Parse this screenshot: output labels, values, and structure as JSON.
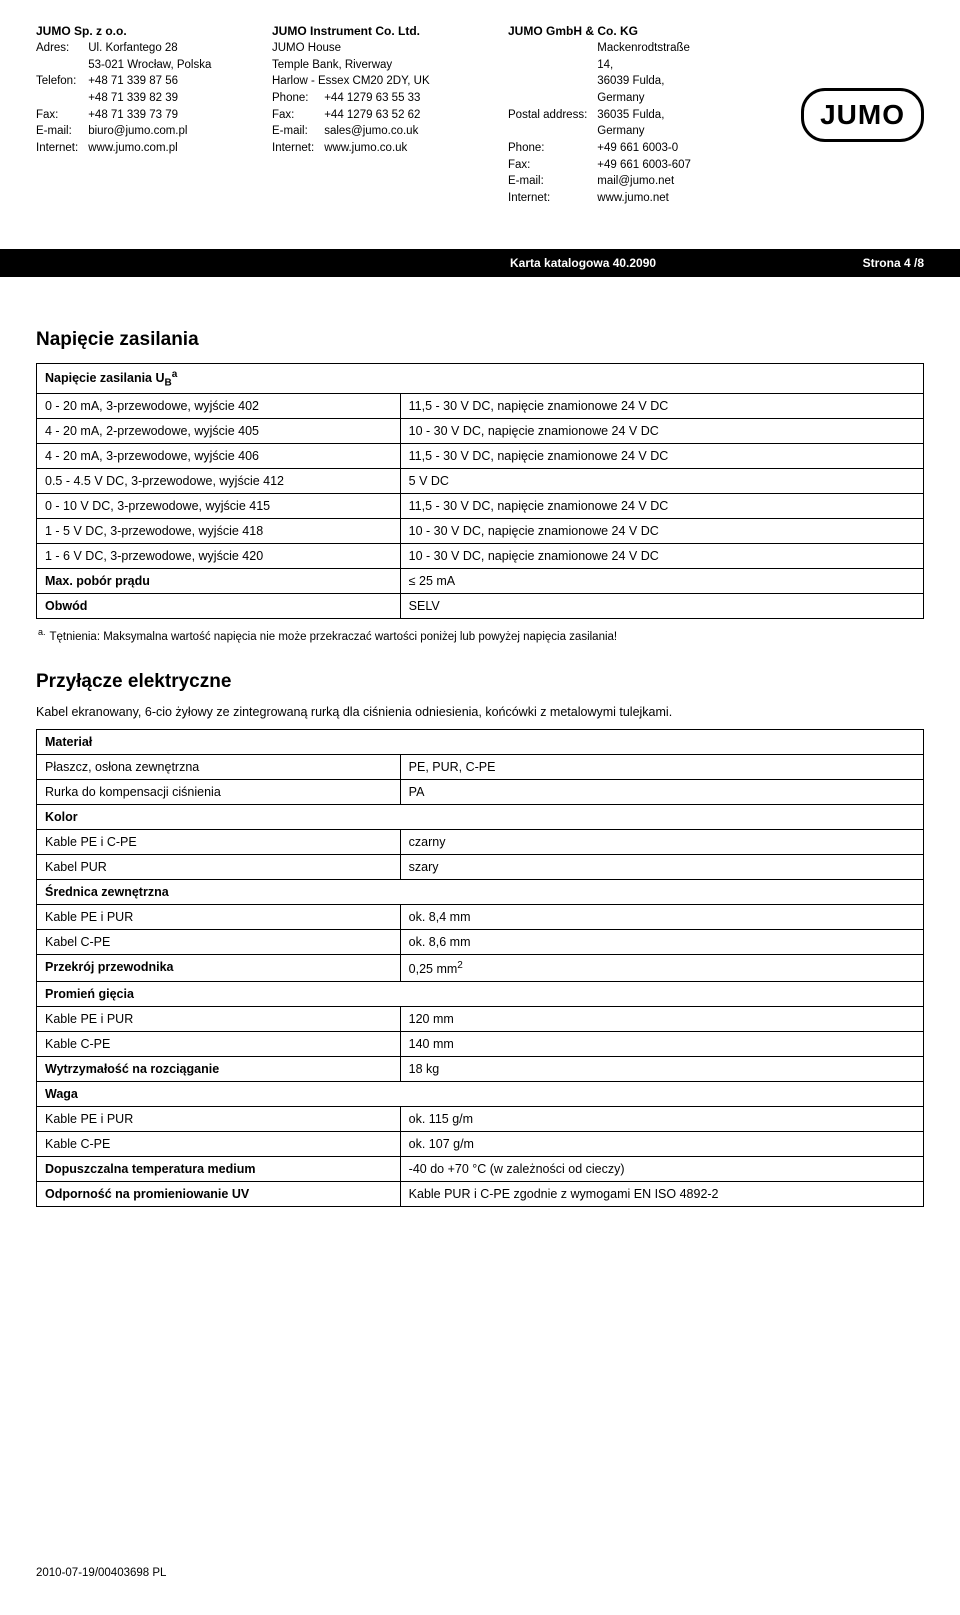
{
  "header": {
    "companies": [
      {
        "name": "JUMO Sp. z o.o.",
        "rows": [
          [
            "Adres:",
            "Ul. Korfantego 28"
          ],
          [
            "",
            "53-021 Wrocław, Polska"
          ],
          [
            "Telefon:",
            "+48 71 339 87 56"
          ],
          [
            "",
            "+48 71 339 82 39"
          ],
          [
            "Fax:",
            "+48 71 339 73 79"
          ],
          [
            "E-mail:",
            "biuro@jumo.com.pl"
          ],
          [
            "Internet:",
            "www.jumo.com.pl"
          ]
        ]
      },
      {
        "name": "JUMO Instrument Co. Ltd.",
        "plain": [
          "JUMO House",
          "Temple Bank, Riverway",
          "Harlow - Essex CM20 2DY, UK"
        ],
        "rows": [
          [
            "Phone:",
            "+44 1279 63 55 33"
          ],
          [
            "Fax:",
            "+44 1279 63 52 62"
          ],
          [
            "E-mail:",
            "sales@jumo.co.uk"
          ],
          [
            "Internet:",
            "www.jumo.co.uk"
          ]
        ]
      },
      {
        "name": "JUMO GmbH & Co. KG",
        "rows": [
          [
            "",
            "Mackenrodtstraße 14,"
          ],
          [
            "",
            "36039 Fulda, Germany"
          ],
          [
            "Postal address:",
            "36035 Fulda, Germany"
          ],
          [
            "Phone:",
            "+49 661 6003-0"
          ],
          [
            "Fax:",
            "+49 661 6003-607"
          ],
          [
            "E-mail:",
            "mail@jumo.net"
          ],
          [
            "Internet:",
            "www.jumo.net"
          ]
        ]
      }
    ],
    "logo_text": "JUMO"
  },
  "blackbar": {
    "karta": "Karta katalogowa 40.2090",
    "strona": "Strona 4 /8"
  },
  "section1": {
    "title": "Napięcie zasilania",
    "table_header": "Napięcie zasilania U",
    "table_header_sub": "B",
    "table_header_sup": "a",
    "rows": [
      [
        "0 - 20 mA, 3-przewodowe, wyjście 402",
        "11,5 - 30 V DC, napięcie znamionowe 24 V DC"
      ],
      [
        "4 - 20 mA, 2-przewodowe, wyjście 405",
        "10 - 30 V DC, napięcie znamionowe 24 V DC"
      ],
      [
        "4 - 20 mA, 3-przewodowe, wyjście 406",
        "11,5 - 30 V DC, napięcie znamionowe 24 V DC"
      ],
      [
        "0.5 - 4.5 V DC, 3-przewodowe, wyjście 412",
        "5 V DC"
      ],
      [
        "0 - 10 V DC, 3-przewodowe, wyjście 415",
        "11,5 - 30 V DC, napięcie znamionowe 24 V DC"
      ],
      [
        "1 - 5 V DC, 3-przewodowe, wyjście 418",
        "10 - 30 V DC, napięcie znamionowe 24 V DC"
      ],
      [
        "1 - 6 V DC, 3-przewodowe, wyjście 420",
        "10 - 30 V DC, napięcie znamionowe 24 V DC"
      ],
      [
        "Max. pobór prądu",
        "≤ 25 mA"
      ],
      [
        "Obwód",
        "SELV"
      ]
    ],
    "bold_rows": [
      7,
      8
    ],
    "footnote_mark": "a.",
    "footnote": "Tętnienia: Maksymalna wartość napięcia nie może przekraczać wartości poniżej lub powyżej napięcia zasilania!"
  },
  "section2": {
    "title": "Przyłącze elektryczne",
    "intro": "Kabel ekranowany, 6-cio żyłowy ze zintegrowaną rurką dla ciśnienia odniesienia, końcówki z metalowymi tulejkami.",
    "groups": [
      {
        "header": "Materiał",
        "rows": [
          [
            "Płaszcz, osłona zewnętrzna",
            "PE, PUR, C-PE"
          ],
          [
            "Rurka do kompensacji ciśnienia",
            "PA"
          ]
        ]
      },
      {
        "header": "Kolor",
        "rows": [
          [
            "Kable PE i C-PE",
            "czarny"
          ],
          [
            "Kabel PUR",
            "szary"
          ]
        ]
      },
      {
        "header": "Średnica zewnętrzna",
        "rows": [
          [
            "Kable PE i PUR",
            "ok. 8,4 mm"
          ],
          [
            "Kabel C-PE",
            "ok. 8,6 mm"
          ]
        ]
      },
      {
        "header": "Przekrój przewodnika",
        "value": "0,25 mm",
        "sup": "2"
      },
      {
        "header": "Promień gięcia",
        "rows": [
          [
            "Kable PE i PUR",
            "120 mm"
          ],
          [
            "Kable C-PE",
            "140 mm"
          ]
        ]
      },
      {
        "header": "Wytrzymałość na rozciąganie",
        "value": "18 kg"
      },
      {
        "header": "Waga",
        "rows": [
          [
            "Kable PE i PUR",
            "ok. 115 g/m"
          ],
          [
            "Kable C-PE",
            "ok. 107 g/m"
          ]
        ]
      },
      {
        "header": "Dopuszczalna temperatura medium",
        "value": "-40 do +70 °C (w zależności od cieczy)"
      },
      {
        "header": "Odporność na promieniowanie UV",
        "value": "Kable PUR i C-PE zgodnie z wymogami EN ISO 4892-2"
      }
    ]
  },
  "footer": "2010-07-19/00403698 PL",
  "layout": {
    "col1_width_pct": 41
  }
}
